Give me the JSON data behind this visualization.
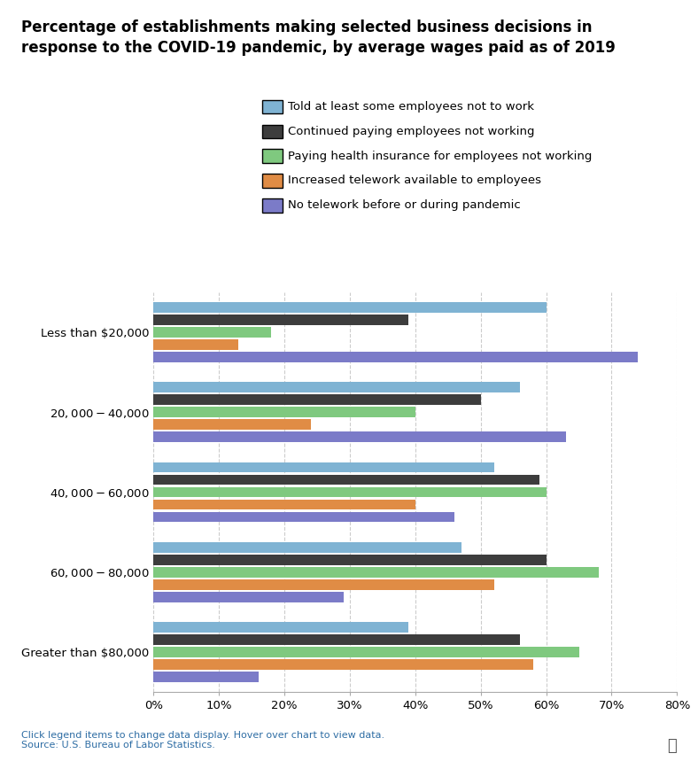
{
  "title": "Percentage of establishments making selected business decisions in\nresponse to the COVID-19 pandemic, by average wages paid as of 2019",
  "categories": [
    "Less than $20,000",
    "$20,000-$40,000",
    "$40,000-$60,000",
    "$60,000-$80,000",
    "Greater than $80,000"
  ],
  "series": [
    {
      "label": "Told at least some employees not to work",
      "color": "#7fb3d3",
      "values": [
        60,
        56,
        52,
        47,
        39
      ]
    },
    {
      "label": "Continued paying employees not working",
      "color": "#3d3d3d",
      "values": [
        39,
        50,
        59,
        60,
        56
      ]
    },
    {
      "label": "Paying health insurance for employees not working",
      "color": "#7fc97f",
      "values": [
        18,
        40,
        60,
        68,
        65
      ]
    },
    {
      "label": "Increased telework available to employees",
      "color": "#e08c45",
      "values": [
        13,
        24,
        40,
        52,
        58
      ]
    },
    {
      "label": "No telework before or during pandemic",
      "color": "#7b7bc8",
      "values": [
        74,
        63,
        46,
        29,
        16
      ]
    }
  ],
  "xlim": [
    0,
    80
  ],
  "xticks": [
    0,
    10,
    20,
    30,
    40,
    50,
    60,
    70,
    80
  ],
  "xticklabels": [
    "0%",
    "10%",
    "20%",
    "30%",
    "40%",
    "50%",
    "60%",
    "70%",
    "80%"
  ],
  "footnote": "Click legend items to change data display. Hover over chart to view data.\nSource: U.S. Bureau of Labor Statistics.",
  "background_color": "#ffffff",
  "grid_color": "#cccccc",
  "title_fontsize": 12.0,
  "tick_fontsize": 9.5,
  "legend_fontsize": 9.5,
  "label_fontsize": 9.5,
  "bar_height": 0.13,
  "bar_gap": 0.025
}
